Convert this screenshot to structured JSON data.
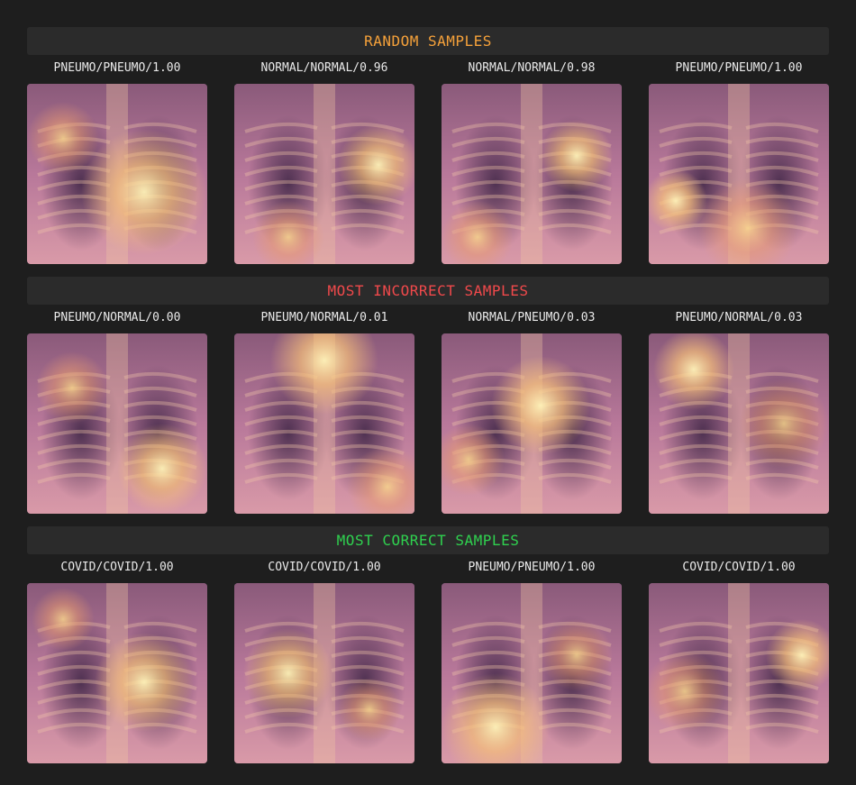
{
  "colors": {
    "random": "#f5a13a",
    "incorrect": "#f0494b",
    "correct": "#2fd14f"
  },
  "sections": [
    {
      "title": "RANDOM SAMPLES",
      "color": "#f5a13a",
      "samples": [
        {
          "label": "PNEUMO/PNEUMO/1.00"
        },
        {
          "label": "NORMAL/NORMAL/0.96"
        },
        {
          "label": "NORMAL/NORMAL/0.98"
        },
        {
          "label": "PNEUMO/PNEUMO/1.00"
        }
      ]
    },
    {
      "title": "MOST INCORRECT SAMPLES",
      "color": "#f0494b",
      "samples": [
        {
          "label": "PNEUMO/NORMAL/0.00"
        },
        {
          "label": "PNEUMO/NORMAL/0.01"
        },
        {
          "label": "NORMAL/PNEUMO/0.03"
        },
        {
          "label": "PNEUMO/NORMAL/0.03"
        }
      ]
    },
    {
      "title": "MOST CORRECT SAMPLES",
      "color": "#2fd14f",
      "samples": [
        {
          "label": "COVID/COVID/1.00"
        },
        {
          "label": "COVID/COVID/1.00"
        },
        {
          "label": "PNEUMO/PNEUMO/1.00"
        },
        {
          "label": "COVID/COVID/1.00"
        }
      ]
    }
  ]
}
